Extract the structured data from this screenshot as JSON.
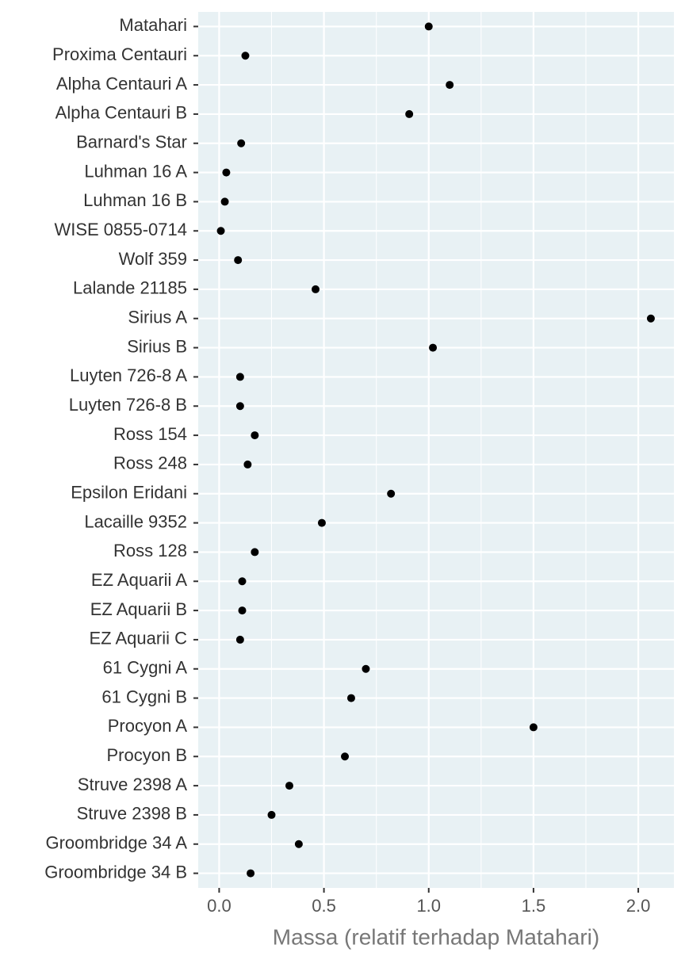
{
  "chart_data": {
    "type": "dot",
    "x_label": "Massa (relatif terhadap Matahari)",
    "categories": [
      "Matahari",
      "Proxima Centauri",
      "Alpha Centauri A",
      "Alpha Centauri B",
      "Barnard's Star",
      "Luhman 16 A",
      "Luhman 16 B",
      "WISE 0855-0714",
      "Wolf 359",
      "Lalande 21185",
      "Sirius A",
      "Sirius B",
      "Luyten 726-8 A",
      "Luyten 726-8 B",
      "Ross 154",
      "Ross 248",
      "Epsilon Eridani",
      "Lacaille 9352",
      "Ross 128",
      "EZ Aquarii A",
      "EZ Aquarii B",
      "EZ Aquarii C",
      "61 Cygni A",
      "61 Cygni B",
      "Procyon A",
      "Procyon B",
      "Struve 2398 A",
      "Struve 2398 B",
      "Groombridge 34 A",
      "Groombridge 34 B"
    ],
    "values": [
      1.0,
      0.125,
      1.1,
      0.907,
      0.105,
      0.034,
      0.027,
      0.008,
      0.09,
      0.46,
      2.06,
      1.02,
      0.1,
      0.1,
      0.17,
      0.136,
      0.82,
      0.49,
      0.17,
      0.11,
      0.11,
      0.1,
      0.7,
      0.63,
      1.5,
      0.6,
      0.335,
      0.25,
      0.38,
      0.15
    ],
    "color": "#000000",
    "xlim": [
      -0.1,
      2.17
    ],
    "xticks": [
      {
        "value": 0,
        "label": "0.0"
      },
      {
        "value": 0.5,
        "label": "0.5"
      },
      {
        "value": 1,
        "label": "1.0"
      },
      {
        "value": 1.5,
        "label": "1.5"
      },
      {
        "value": 2,
        "label": "2.0"
      }
    ],
    "grid": true,
    "panel_color": "#e8f1f4"
  }
}
